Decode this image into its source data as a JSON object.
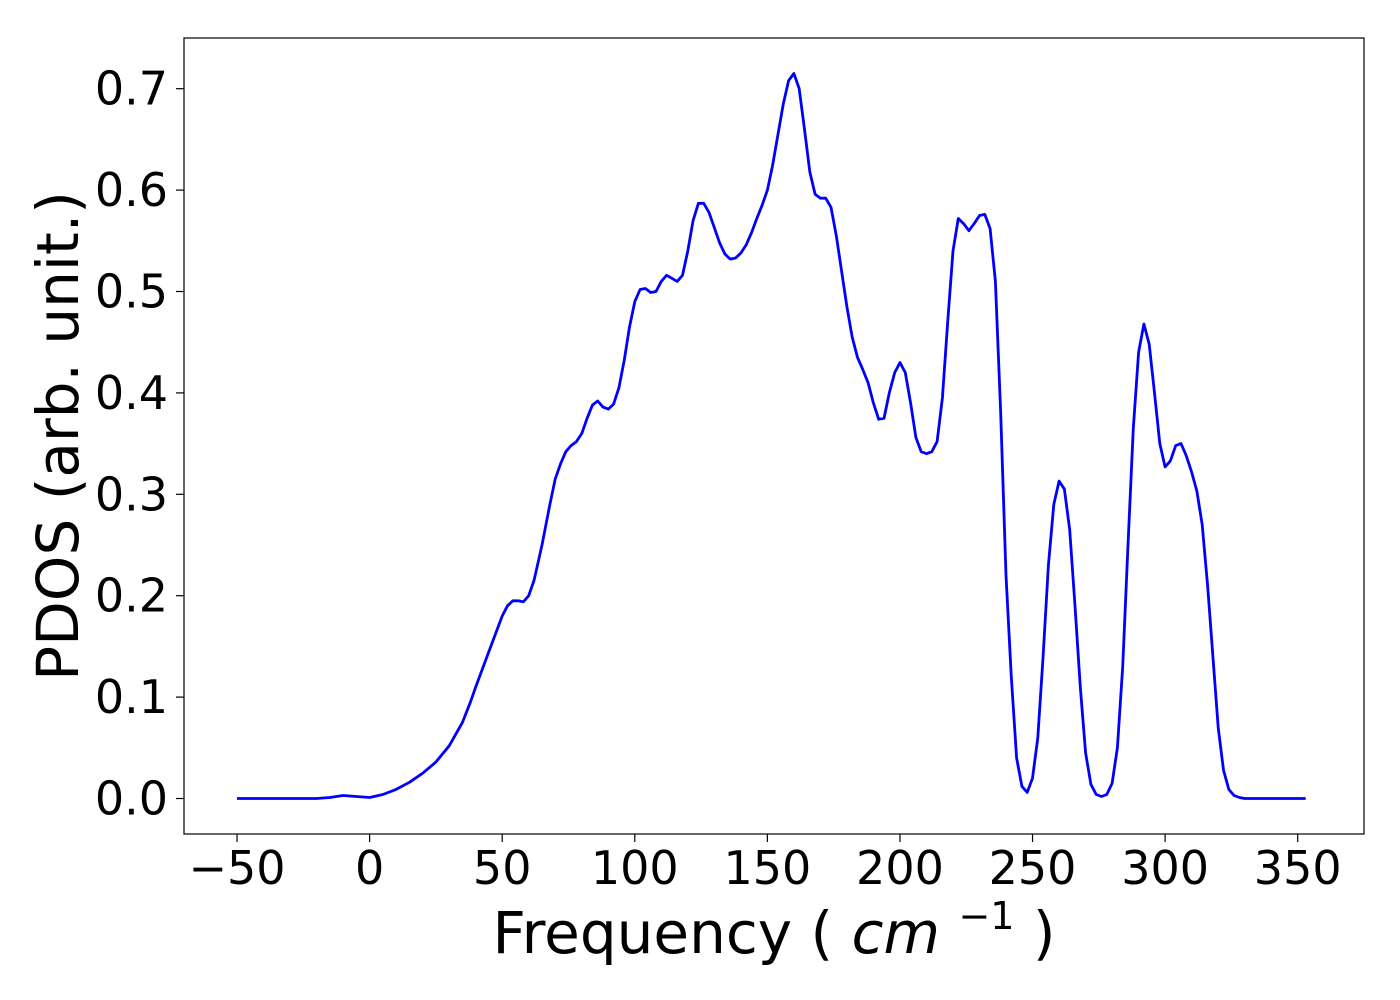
{
  "chart_data": {
    "type": "line",
    "title": "",
    "xlabel": "Frequency",
    "xlabel_unit_base": "cm",
    "xlabel_unit_exp": "−1",
    "ylabel": "PDOS (arb. unit.)",
    "xlim": [
      -70,
      375
    ],
    "ylim": [
      -0.035,
      0.75
    ],
    "grid": false,
    "x_ticks": [
      -50,
      0,
      50,
      100,
      150,
      200,
      250,
      300,
      350
    ],
    "x_tick_labels": [
      "−50",
      "0",
      "50",
      "100",
      "150",
      "200",
      "250",
      "300",
      "350"
    ],
    "y_ticks": [
      0.0,
      0.1,
      0.2,
      0.3,
      0.4,
      0.5,
      0.6,
      0.7
    ],
    "y_tick_labels": [
      "0.0",
      "0.1",
      "0.2",
      "0.3",
      "0.4",
      "0.5",
      "0.6",
      "0.7"
    ],
    "series": [
      {
        "color": "#0000ff",
        "x": [
          -50,
          -40,
          -30,
          -20,
          -15,
          -10,
          -5,
          0,
          5,
          10,
          15,
          20,
          25,
          30,
          35,
          38,
          40,
          45,
          50,
          52,
          54,
          56,
          58,
          60,
          62,
          65,
          68,
          70,
          72,
          74,
          76,
          78,
          80,
          82,
          84,
          86,
          88,
          90,
          92,
          94,
          96,
          98,
          100,
          102,
          104,
          106,
          108,
          110,
          112,
          114,
          116,
          118,
          120,
          122,
          124,
          126,
          128,
          130,
          132,
          134,
          136,
          138,
          140,
          142,
          144,
          146,
          148,
          150,
          152,
          154,
          156,
          158,
          160,
          162,
          164,
          166,
          168,
          170,
          172,
          174,
          176,
          178,
          180,
          182,
          184,
          186,
          188,
          190,
          192,
          194,
          196,
          198,
          200,
          202,
          204,
          206,
          208,
          210,
          212,
          214,
          216,
          218,
          220,
          222,
          224,
          226,
          228,
          230,
          232,
          234,
          236,
          238,
          240,
          242,
          244,
          246,
          248,
          250,
          252,
          254,
          256,
          258,
          260,
          262,
          264,
          266,
          268,
          270,
          272,
          274,
          276,
          278,
          280,
          282,
          284,
          286,
          288,
          290,
          292,
          294,
          296,
          298,
          300,
          302,
          304,
          306,
          308,
          310,
          312,
          314,
          316,
          318,
          320,
          322,
          324,
          326,
          328,
          330,
          335,
          340,
          345,
          353
        ],
        "y": [
          0.0,
          0.0,
          0.0,
          0.0,
          0.001,
          0.003,
          0.002,
          0.001,
          0.004,
          0.009,
          0.016,
          0.025,
          0.036,
          0.052,
          0.075,
          0.095,
          0.11,
          0.145,
          0.18,
          0.19,
          0.195,
          0.195,
          0.194,
          0.2,
          0.215,
          0.25,
          0.29,
          0.315,
          0.33,
          0.342,
          0.348,
          0.352,
          0.36,
          0.375,
          0.388,
          0.392,
          0.386,
          0.384,
          0.389,
          0.405,
          0.432,
          0.465,
          0.49,
          0.502,
          0.503,
          0.499,
          0.5,
          0.51,
          0.516,
          0.513,
          0.51,
          0.516,
          0.54,
          0.57,
          0.587,
          0.587,
          0.578,
          0.563,
          0.548,
          0.537,
          0.532,
          0.533,
          0.538,
          0.546,
          0.558,
          0.572,
          0.585,
          0.6,
          0.625,
          0.655,
          0.685,
          0.708,
          0.715,
          0.7,
          0.66,
          0.618,
          0.596,
          0.592,
          0.592,
          0.583,
          0.555,
          0.52,
          0.485,
          0.455,
          0.435,
          0.423,
          0.41,
          0.39,
          0.374,
          0.375,
          0.4,
          0.42,
          0.43,
          0.42,
          0.39,
          0.356,
          0.342,
          0.34,
          0.342,
          0.352,
          0.395,
          0.47,
          0.54,
          0.572,
          0.567,
          0.56,
          0.567,
          0.575,
          0.576,
          0.562,
          0.51,
          0.38,
          0.22,
          0.12,
          0.04,
          0.012,
          0.006,
          0.02,
          0.06,
          0.14,
          0.23,
          0.29,
          0.313,
          0.305,
          0.265,
          0.19,
          0.11,
          0.045,
          0.014,
          0.004,
          0.002,
          0.004,
          0.015,
          0.05,
          0.13,
          0.25,
          0.365,
          0.44,
          0.468,
          0.448,
          0.4,
          0.35,
          0.327,
          0.333,
          0.348,
          0.35,
          0.338,
          0.322,
          0.303,
          0.27,
          0.21,
          0.14,
          0.07,
          0.028,
          0.009,
          0.003,
          0.001,
          0.0,
          0.0,
          0.0,
          0.0,
          0.0
        ]
      }
    ]
  }
}
